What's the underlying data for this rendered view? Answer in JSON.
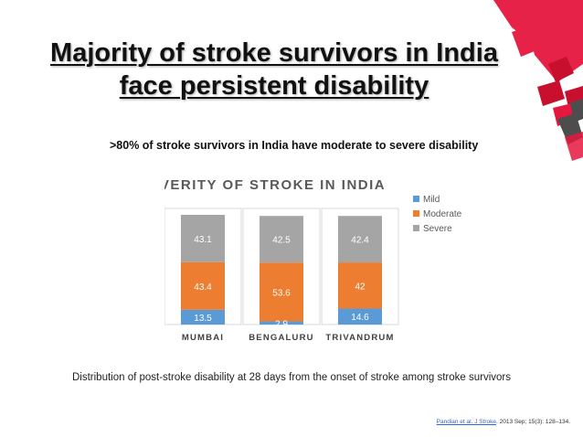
{
  "slide": {
    "title_line1": "Majority of stroke survivors in India",
    "title_line2": "face persistent disability",
    "subtitle": ">80% of stroke survivors in India have moderate to severe disability",
    "caption": "Distribution of post-stroke disability at 28 days from the onset of stroke among stroke survivors",
    "citation_link": "Pandian et al. J Stroke",
    "citation_rest": ". 2013 Sep; 15(3): 128–134."
  },
  "chart_data": {
    "type": "bar",
    "stacked": true,
    "title": "SEVERITY OF STROKE IN INDIA",
    "categories": [
      "MUMBAI",
      "BENGALURU",
      "TRIVANDRUM"
    ],
    "series": [
      {
        "name": "Mild",
        "values": [
          13.5,
          2.9,
          14.6
        ],
        "color": "#5b9bd5"
      },
      {
        "name": "Moderate",
        "values": [
          43.4,
          53.6,
          42
        ],
        "color": "#ed7d31"
      },
      {
        "name": "Severe",
        "values": [
          43.1,
          42.5,
          42.4
        ],
        "color": "#a5a5a5"
      }
    ],
    "value_labels": [
      [
        "13.5",
        "2.9",
        "14.6"
      ],
      [
        "43.4",
        "53.6",
        "42"
      ],
      [
        "43.1",
        "42.5",
        "42.4"
      ]
    ],
    "ylim": [
      0,
      100
    ],
    "legend_position": "top-right",
    "grid": false
  },
  "colors": {
    "deco_red": "#e5173f",
    "deco_dark": "#4d4d4d"
  }
}
